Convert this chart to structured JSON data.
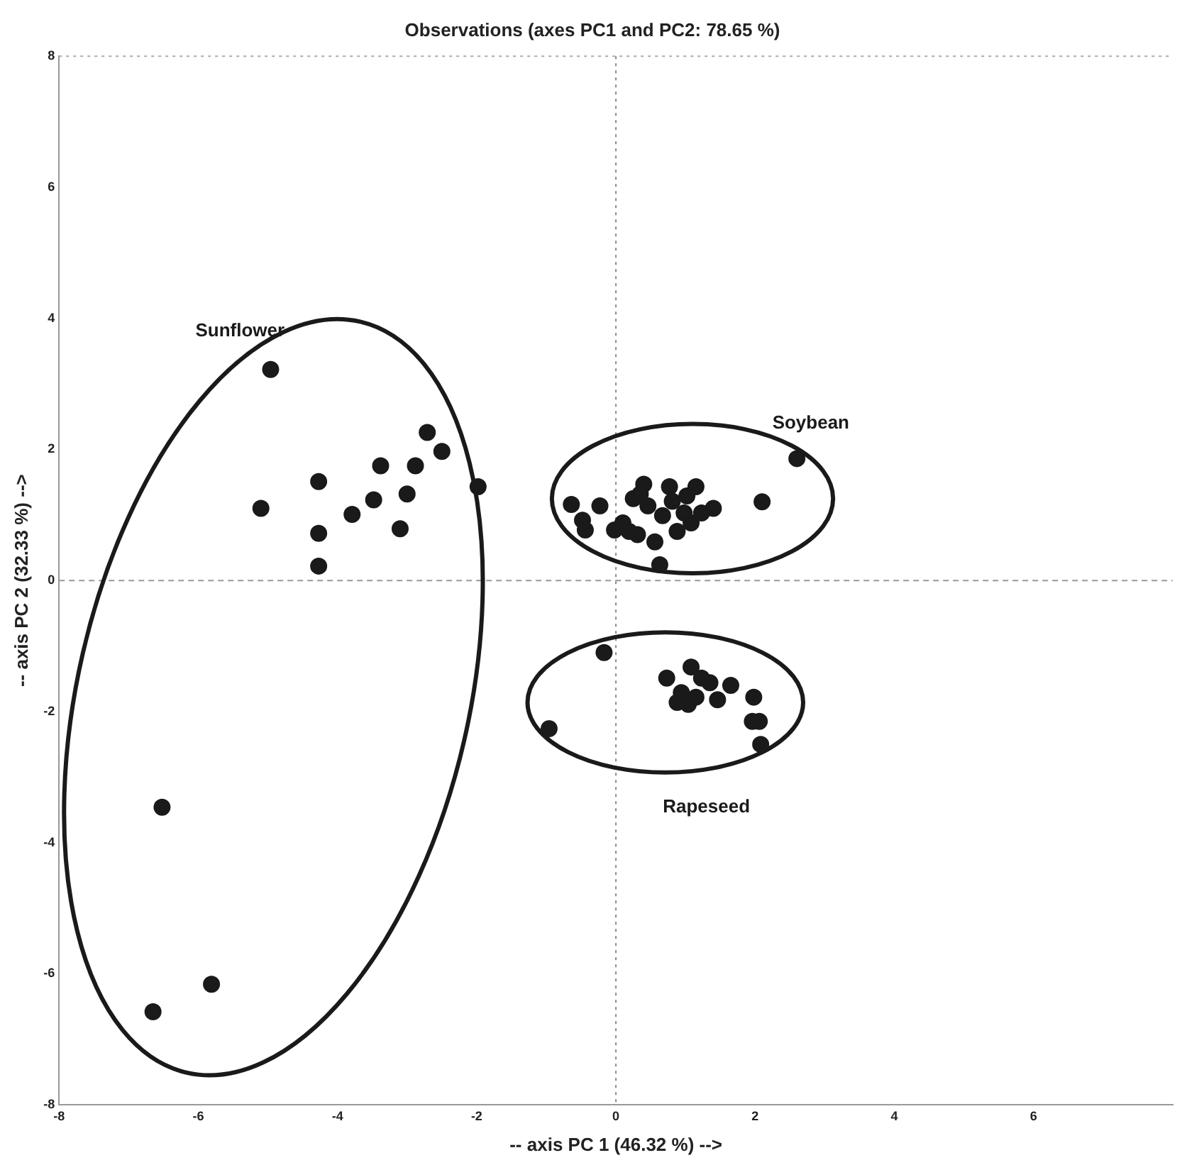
{
  "chart_data": {
    "type": "scatter",
    "title": "Observations (axes PC1 and PC2: 78.65 %)",
    "xlabel": "-- axis PC 1 (46.32 %) -->",
    "ylabel": "-- axis PC 2 (32.33 %) -->",
    "xlim": [
      -8,
      8
    ],
    "xticks": [
      -8,
      -6,
      -4,
      -2,
      0,
      2,
      4,
      6
    ],
    "ylim": [
      -8,
      8
    ],
    "yticks": [
      -8,
      -6,
      -4,
      -2,
      0,
      2,
      4,
      6,
      8
    ],
    "grid": false,
    "legend": false,
    "marker": "circle",
    "ref_lines": [
      {
        "axis": "x",
        "value": 0,
        "color": "#888888",
        "line_style": "dotted"
      },
      {
        "axis": "y",
        "value": 0,
        "color": "#999999",
        "line_style": "dashed"
      }
    ],
    "series": [
      {
        "name": "Sunflower",
        "color": "#1a1a1a",
        "x": [
          -4.96,
          -2.71,
          -2.5,
          -3.38,
          -2.88,
          -4.27,
          -1.98,
          -3.0,
          -3.48,
          -5.1,
          -3.79,
          -3.1,
          -4.27,
          -4.27,
          -6.52,
          -5.81,
          -6.65
        ],
        "values": [
          3.22,
          2.26,
          1.97,
          1.75,
          1.75,
          1.51,
          1.43,
          1.32,
          1.23,
          1.1,
          1.01,
          0.79,
          0.72,
          0.22,
          -3.46,
          -6.16,
          -6.58
        ]
      },
      {
        "name": "Soybean",
        "color": "#1a1a1a",
        "x": [
          2.6,
          2.1,
          -0.64,
          -0.23,
          -0.48,
          -0.44,
          0.63,
          0.4,
          0.77,
          1.15,
          0.25,
          0.46,
          1.02,
          1.4,
          -0.02,
          0.1,
          0.31,
          0.56,
          0.88,
          1.08,
          1.23,
          0.67,
          0.81,
          0.35,
          0.19,
          0.98
        ],
        "values": [
          1.86,
          1.2,
          1.16,
          1.14,
          0.92,
          0.77,
          0.24,
          1.47,
          1.43,
          1.43,
          1.25,
          1.14,
          1.29,
          1.1,
          0.77,
          0.88,
          0.7,
          0.59,
          0.75,
          0.88,
          1.03,
          0.99,
          1.21,
          1.32,
          0.75,
          1.03
        ]
      },
      {
        "name": "Rapeseed",
        "color": "#1a1a1a",
        "x": [
          -0.17,
          -0.96,
          2.08,
          1.98,
          1.96,
          2.06,
          1.08,
          0.73,
          0.94,
          1.04,
          0.88,
          1.35,
          1.65,
          1.46,
          1.23,
          1.15
        ],
        "values": [
          -1.1,
          -2.26,
          -2.5,
          -1.78,
          -2.15,
          -2.15,
          -1.32,
          -1.49,
          -1.71,
          -1.89,
          -1.86,
          -1.56,
          -1.6,
          -1.82,
          -1.49,
          -1.78
        ]
      }
    ]
  }
}
